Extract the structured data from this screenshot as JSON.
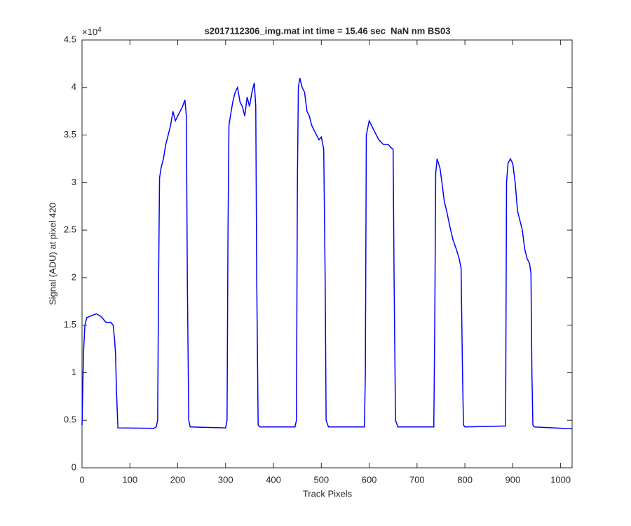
{
  "chart_data": {
    "type": "line",
    "title": "s2017112306_img.mat int time = 15.46 sec  NaN nm BS03",
    "x_label": "Track Pixels",
    "y_label": "Signal (ADU) at pixel 420",
    "y_multiplier": {
      "base": "×10",
      "exponent": "4"
    },
    "xlim": [
      0,
      1024
    ],
    "ylim": [
      0,
      45000
    ],
    "xticks": [
      0,
      100,
      200,
      300,
      400,
      500,
      600,
      700,
      800,
      900,
      1000
    ],
    "yticks": [
      0,
      {
        "value": 5000,
        "label": "0.5"
      },
      {
        "value": 10000,
        "label": "1"
      },
      {
        "value": 15000,
        "label": "1.5"
      },
      {
        "value": 20000,
        "label": "2"
      },
      {
        "value": 25000,
        "label": "2.5"
      },
      {
        "value": 30000,
        "label": "3"
      },
      {
        "value": 35000,
        "label": "3.5"
      },
      {
        "value": 40000,
        "label": "4"
      },
      {
        "value": 45000,
        "label": "4.5"
      }
    ],
    "grid": false,
    "series": [
      {
        "color": "#0000ff",
        "x": [
          0,
          3,
          6,
          10,
          20,
          30,
          40,
          50,
          60,
          65,
          68,
          70,
          72,
          75,
          150,
          155,
          158,
          160,
          162,
          165,
          170,
          175,
          180,
          185,
          190,
          195,
          200,
          205,
          210,
          215,
          218,
          220,
          223,
          226,
          300,
          303,
          305,
          307,
          310,
          315,
          320,
          325,
          330,
          335,
          340,
          345,
          350,
          355,
          360,
          363,
          365,
          368,
          372,
          445,
          448,
          450,
          452,
          455,
          460,
          465,
          470,
          475,
          480,
          485,
          490,
          495,
          500,
          505,
          508,
          510,
          515,
          590,
          592,
          594,
          600,
          605,
          610,
          620,
          630,
          640,
          645,
          650,
          652,
          655,
          660,
          735,
          737,
          739,
          742,
          748,
          752,
          757,
          762,
          768,
          775,
          782,
          788,
          792,
          795,
          797,
          800,
          885,
          887,
          890,
          895,
          900,
          905,
          910,
          915,
          920,
          925,
          930,
          935,
          938,
          940,
          942,
          945,
          1024
        ],
        "values": [
          4500,
          12000,
          15000,
          15800,
          16000,
          16200,
          15900,
          15300,
          15300,
          15000,
          13500,
          12000,
          8000,
          4200,
          4150,
          4300,
          5000,
          20000,
          30500,
          31500,
          32500,
          34000,
          35000,
          36000,
          37500,
          36500,
          37000,
          37500,
          38000,
          38700,
          37000,
          20000,
          5000,
          4300,
          4200,
          5000,
          25000,
          36000,
          37000,
          38500,
          39500,
          40000,
          38500,
          38000,
          37000,
          39000,
          38000,
          39500,
          40500,
          38000,
          20000,
          4500,
          4300,
          4300,
          5000,
          30000,
          40000,
          41000,
          40000,
          39500,
          37500,
          37000,
          36000,
          35500,
          35000,
          34500,
          34800,
          33500,
          20000,
          5000,
          4300,
          4300,
          10000,
          35000,
          36500,
          36000,
          35500,
          34500,
          34000,
          34000,
          33700,
          33500,
          20000,
          5000,
          4300,
          4300,
          15000,
          31000,
          32500,
          31500,
          30000,
          28000,
          27000,
          25500,
          24000,
          23000,
          22000,
          21000,
          10000,
          4500,
          4300,
          4400,
          30000,
          32000,
          32500,
          32000,
          30000,
          27000,
          26000,
          25000,
          23000,
          22000,
          21500,
          20500,
          10000,
          4500,
          4300,
          4100
        ]
      }
    ]
  }
}
